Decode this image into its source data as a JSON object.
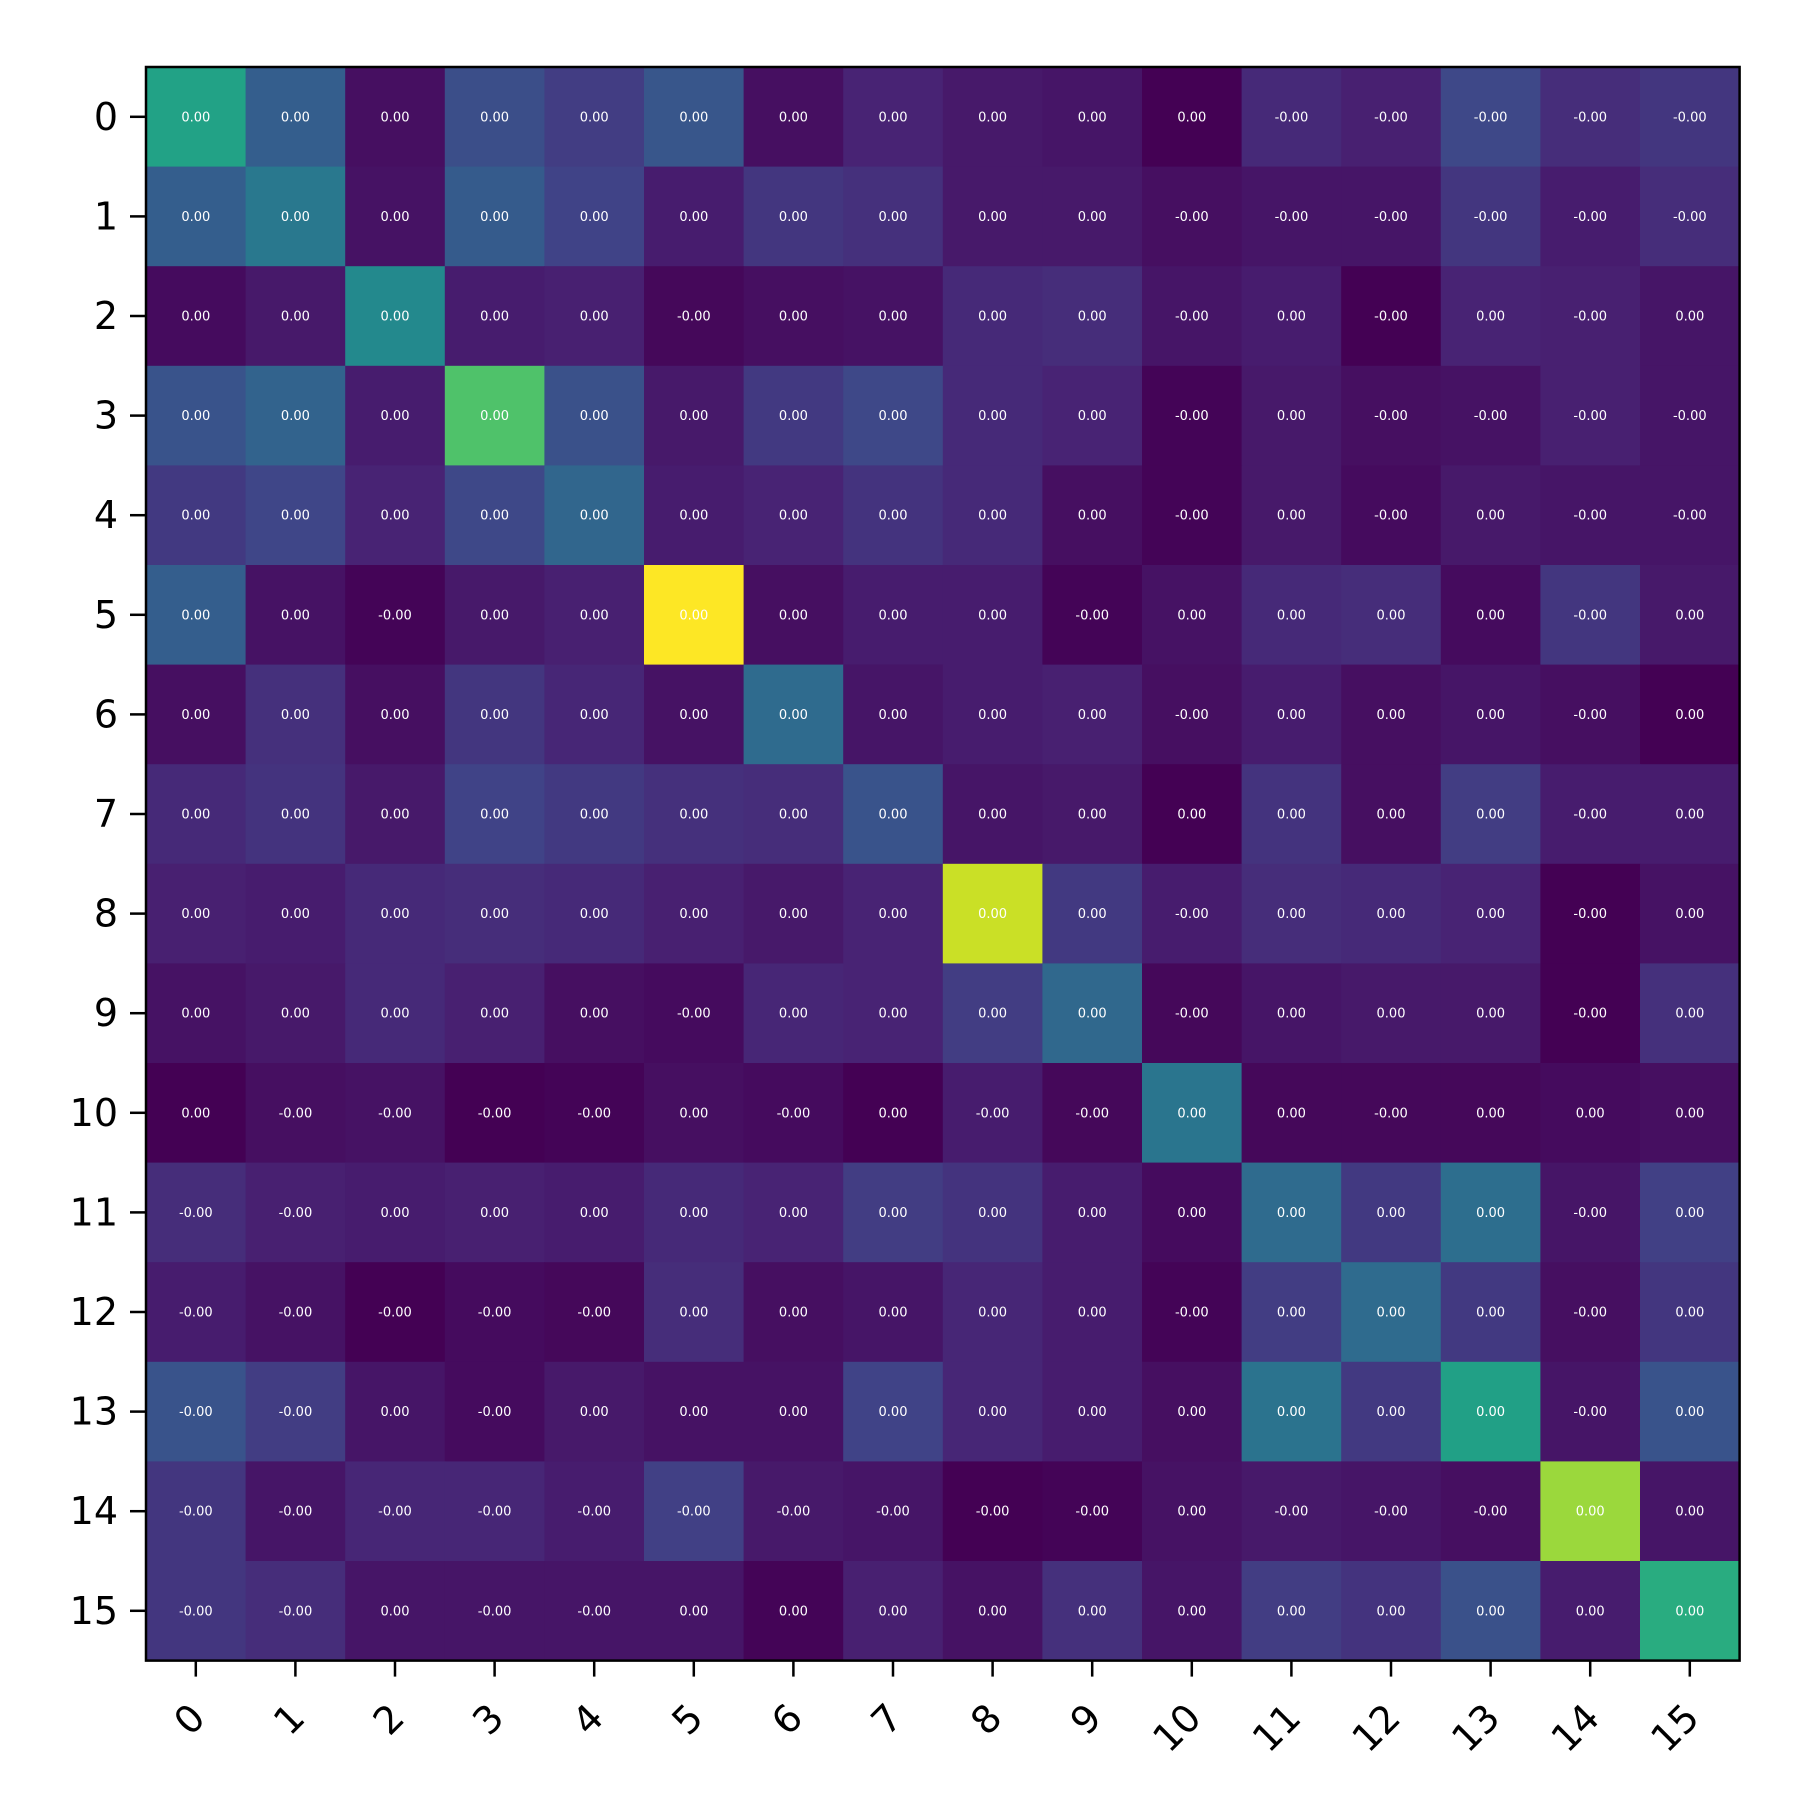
{
  "chart_data": {
    "type": "heatmap",
    "title": "",
    "xlabel": "",
    "ylabel": "",
    "colormap": "viridis",
    "grid": false,
    "rows": [
      "0",
      "1",
      "2",
      "3",
      "4",
      "5",
      "6",
      "7",
      "8",
      "9",
      "10",
      "11",
      "12",
      "13",
      "14",
      "15"
    ],
    "cols": [
      "0",
      "1",
      "2",
      "3",
      "4",
      "5",
      "6",
      "7",
      "8",
      "9",
      "10",
      "11",
      "12",
      "13",
      "14",
      "15"
    ],
    "color_range": [
      0,
      1
    ],
    "intensity": [
      [
        0.58,
        0.3,
        0.04,
        0.24,
        0.18,
        0.27,
        0.04,
        0.1,
        0.07,
        0.06,
        0.0,
        0.12,
        0.09,
        0.22,
        0.13,
        0.16
      ],
      [
        0.3,
        0.4,
        0.05,
        0.29,
        0.2,
        0.08,
        0.16,
        0.14,
        0.07,
        0.07,
        0.04,
        0.06,
        0.06,
        0.16,
        0.08,
        0.13
      ],
      [
        0.03,
        0.07,
        0.47,
        0.08,
        0.09,
        0.02,
        0.04,
        0.05,
        0.12,
        0.13,
        0.06,
        0.08,
        0.0,
        0.1,
        0.09,
        0.06
      ],
      [
        0.26,
        0.32,
        0.08,
        0.72,
        0.25,
        0.07,
        0.17,
        0.22,
        0.12,
        0.1,
        0.01,
        0.07,
        0.04,
        0.05,
        0.09,
        0.06
      ],
      [
        0.17,
        0.21,
        0.1,
        0.22,
        0.33,
        0.08,
        0.1,
        0.15,
        0.12,
        0.04,
        0.01,
        0.07,
        0.03,
        0.07,
        0.06,
        0.06
      ],
      [
        0.3,
        0.05,
        0.01,
        0.07,
        0.09,
        1.0,
        0.04,
        0.08,
        0.08,
        0.01,
        0.05,
        0.12,
        0.13,
        0.03,
        0.16,
        0.07
      ],
      [
        0.04,
        0.14,
        0.04,
        0.16,
        0.11,
        0.05,
        0.35,
        0.06,
        0.08,
        0.09,
        0.04,
        0.08,
        0.04,
        0.06,
        0.04,
        0.0
      ],
      [
        0.12,
        0.15,
        0.07,
        0.2,
        0.17,
        0.14,
        0.13,
        0.26,
        0.06,
        0.07,
        0.0,
        0.15,
        0.04,
        0.18,
        0.08,
        0.08
      ],
      [
        0.09,
        0.08,
        0.12,
        0.13,
        0.12,
        0.09,
        0.07,
        0.1,
        0.92,
        0.17,
        0.08,
        0.13,
        0.12,
        0.1,
        0.0,
        0.05
      ],
      [
        0.05,
        0.07,
        0.12,
        0.09,
        0.04,
        0.03,
        0.11,
        0.1,
        0.18,
        0.34,
        0.02,
        0.06,
        0.07,
        0.07,
        0.0,
        0.14
      ],
      [
        0.0,
        0.04,
        0.05,
        0.0,
        0.01,
        0.04,
        0.03,
        0.0,
        0.08,
        0.02,
        0.39,
        0.02,
        0.02,
        0.02,
        0.03,
        0.04
      ],
      [
        0.13,
        0.09,
        0.08,
        0.09,
        0.08,
        0.12,
        0.1,
        0.18,
        0.15,
        0.08,
        0.03,
        0.35,
        0.17,
        0.36,
        0.06,
        0.19
      ],
      [
        0.08,
        0.05,
        0.0,
        0.03,
        0.02,
        0.13,
        0.04,
        0.06,
        0.11,
        0.08,
        0.01,
        0.18,
        0.35,
        0.17,
        0.04,
        0.16
      ],
      [
        0.26,
        0.18,
        0.06,
        0.03,
        0.07,
        0.05,
        0.05,
        0.2,
        0.11,
        0.08,
        0.04,
        0.38,
        0.17,
        0.57,
        0.06,
        0.26
      ],
      [
        0.16,
        0.06,
        0.11,
        0.11,
        0.08,
        0.19,
        0.07,
        0.06,
        0.0,
        0.01,
        0.05,
        0.07,
        0.06,
        0.04,
        0.85,
        0.06
      ],
      [
        0.16,
        0.13,
        0.06,
        0.06,
        0.06,
        0.06,
        0.01,
        0.09,
        0.05,
        0.14,
        0.06,
        0.18,
        0.15,
        0.25,
        0.08,
        0.62
      ]
    ],
    "cell_labels": [
      [
        "0.00",
        "0.00",
        "0.00",
        "0.00",
        "0.00",
        "0.00",
        "0.00",
        "0.00",
        "0.00",
        "0.00",
        "0.00",
        "-0.00",
        "-0.00",
        "-0.00",
        "-0.00",
        "-0.00"
      ],
      [
        "0.00",
        "0.00",
        "0.00",
        "0.00",
        "0.00",
        "0.00",
        "0.00",
        "0.00",
        "0.00",
        "0.00",
        "-0.00",
        "-0.00",
        "-0.00",
        "-0.00",
        "-0.00",
        "-0.00"
      ],
      [
        "0.00",
        "0.00",
        "0.00",
        "0.00",
        "0.00",
        "-0.00",
        "0.00",
        "0.00",
        "0.00",
        "0.00",
        "-0.00",
        "0.00",
        "-0.00",
        "0.00",
        "-0.00",
        "0.00"
      ],
      [
        "0.00",
        "0.00",
        "0.00",
        "0.00",
        "0.00",
        "0.00",
        "0.00",
        "0.00",
        "0.00",
        "0.00",
        "-0.00",
        "0.00",
        "-0.00",
        "-0.00",
        "-0.00",
        "-0.00"
      ],
      [
        "0.00",
        "0.00",
        "0.00",
        "0.00",
        "0.00",
        "0.00",
        "0.00",
        "0.00",
        "0.00",
        "0.00",
        "-0.00",
        "0.00",
        "-0.00",
        "0.00",
        "-0.00",
        "-0.00"
      ],
      [
        "0.00",
        "0.00",
        "-0.00",
        "0.00",
        "0.00",
        "0.00",
        "0.00",
        "0.00",
        "0.00",
        "-0.00",
        "0.00",
        "0.00",
        "0.00",
        "0.00",
        "-0.00",
        "0.00"
      ],
      [
        "0.00",
        "0.00",
        "0.00",
        "0.00",
        "0.00",
        "0.00",
        "0.00",
        "0.00",
        "0.00",
        "0.00",
        "-0.00",
        "0.00",
        "0.00",
        "0.00",
        "-0.00",
        "0.00"
      ],
      [
        "0.00",
        "0.00",
        "0.00",
        "0.00",
        "0.00",
        "0.00",
        "0.00",
        "0.00",
        "0.00",
        "0.00",
        "0.00",
        "0.00",
        "0.00",
        "0.00",
        "-0.00",
        "0.00"
      ],
      [
        "0.00",
        "0.00",
        "0.00",
        "0.00",
        "0.00",
        "0.00",
        "0.00",
        "0.00",
        "0.00",
        "0.00",
        "-0.00",
        "0.00",
        "0.00",
        "0.00",
        "-0.00",
        "0.00"
      ],
      [
        "0.00",
        "0.00",
        "0.00",
        "0.00",
        "0.00",
        "-0.00",
        "0.00",
        "0.00",
        "0.00",
        "0.00",
        "-0.00",
        "0.00",
        "0.00",
        "0.00",
        "-0.00",
        "0.00"
      ],
      [
        "0.00",
        "-0.00",
        "-0.00",
        "-0.00",
        "-0.00",
        "0.00",
        "-0.00",
        "0.00",
        "-0.00",
        "-0.00",
        "0.00",
        "0.00",
        "-0.00",
        "0.00",
        "0.00",
        "0.00"
      ],
      [
        "-0.00",
        "-0.00",
        "0.00",
        "0.00",
        "0.00",
        "0.00",
        "0.00",
        "0.00",
        "0.00",
        "0.00",
        "0.00",
        "0.00",
        "0.00",
        "0.00",
        "-0.00",
        "0.00"
      ],
      [
        "-0.00",
        "-0.00",
        "-0.00",
        "-0.00",
        "-0.00",
        "0.00",
        "0.00",
        "0.00",
        "0.00",
        "0.00",
        "-0.00",
        "0.00",
        "0.00",
        "0.00",
        "-0.00",
        "0.00"
      ],
      [
        "-0.00",
        "-0.00",
        "0.00",
        "-0.00",
        "0.00",
        "0.00",
        "0.00",
        "0.00",
        "0.00",
        "0.00",
        "0.00",
        "0.00",
        "0.00",
        "0.00",
        "-0.00",
        "0.00"
      ],
      [
        "-0.00",
        "-0.00",
        "-0.00",
        "-0.00",
        "-0.00",
        "-0.00",
        "-0.00",
        "-0.00",
        "-0.00",
        "-0.00",
        "0.00",
        "-0.00",
        "-0.00",
        "-0.00",
        "0.00",
        "0.00"
      ],
      [
        "-0.00",
        "-0.00",
        "0.00",
        "-0.00",
        "-0.00",
        "0.00",
        "0.00",
        "0.00",
        "0.00",
        "0.00",
        "0.00",
        "0.00",
        "0.00",
        "0.00",
        "0.00",
        "0.00"
      ]
    ]
  }
}
